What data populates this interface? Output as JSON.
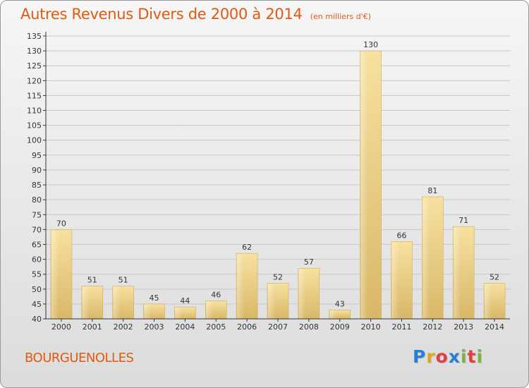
{
  "title": "Autres Revenus Divers de 2000 à 2014",
  "subtitle": "(en milliers d'€)",
  "place": "BOURGUENOLLES",
  "logo": {
    "text": "Proxiti",
    "letter_colors": [
      "#2a7fd4",
      "#e8a21a",
      "#e04040",
      "#2a7fd4",
      "#7cb342",
      "#e04040",
      "#7cb342"
    ]
  },
  "colors": {
    "title": "#e05a10",
    "bar_light": "#f7e1a0",
    "bar_dark": "#d9b768",
    "axis": "#333333",
    "grid": "#c8c8c8"
  },
  "chart_data": {
    "type": "bar",
    "categories": [
      "2000",
      "2001",
      "2002",
      "2003",
      "2004",
      "2005",
      "2006",
      "2007",
      "2008",
      "2009",
      "2010",
      "2011",
      "2012",
      "2013",
      "2014"
    ],
    "values": [
      70,
      51,
      51,
      45,
      44,
      46,
      62,
      52,
      57,
      43,
      130,
      66,
      81,
      71,
      52
    ],
    "title": "Autres Revenus Divers de 2000 à 2014",
    "xlabel": "",
    "ylabel": "",
    "ylim": [
      40,
      135
    ],
    "ytick_step": 5,
    "grid": true,
    "data_labels": true
  }
}
